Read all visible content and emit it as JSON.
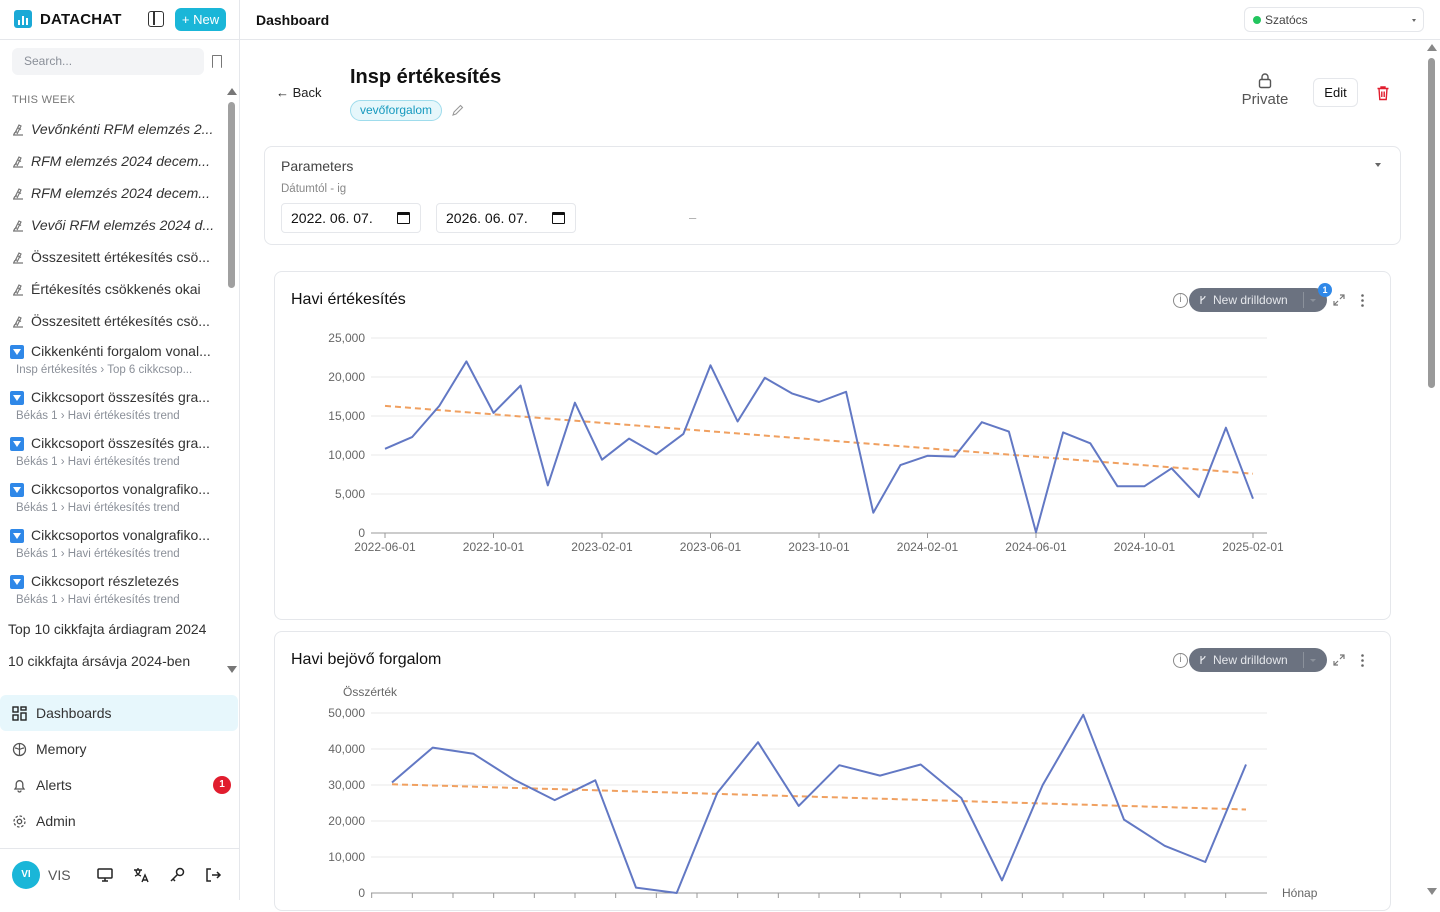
{
  "app": {
    "name": "DATACHAT",
    "new_label": "+ New",
    "search_placeholder": "Search..."
  },
  "sidebar": {
    "section": "THIS WEEK",
    "items": [
      {
        "label": "Vevőnkénti RFM elemzés 2...",
        "kind": "analysis",
        "italic": true
      },
      {
        "label": "RFM elemzés 2024 decem...",
        "kind": "analysis",
        "italic": true
      },
      {
        "label": "RFM elemzés 2024 decem...",
        "kind": "analysis",
        "italic": true
      },
      {
        "label": "Vevői RFM elemzés 2024 d...",
        "kind": "analysis",
        "italic": true
      },
      {
        "label": "Összesitett értékesítés csö...",
        "kind": "analysis",
        "italic": false
      },
      {
        "label": "Értékesítés csökkenés okai",
        "kind": "analysis",
        "italic": false
      },
      {
        "label": "Összesitett értékesítés csö...",
        "kind": "analysis",
        "italic": false
      }
    ],
    "drilldowns": [
      {
        "label": "Cikkenkénti forgalom vonal...",
        "sub": "Insp értékesítés › Top 6 cikkcsop..."
      },
      {
        "label": "Cikkcsoport összesítés gra...",
        "sub": "Békás 1 › Havi értékesítés trend"
      },
      {
        "label": "Cikkcsoport összesítés gra...",
        "sub": "Békás 1 › Havi értékesítés trend"
      },
      {
        "label": "Cikkcsoportos vonalgrafiko...",
        "sub": "Békás 1 › Havi értékesítés trend"
      },
      {
        "label": "Cikkcsoportos vonalgrafiko...",
        "sub": "Békás 1 › Havi értékesítés trend"
      },
      {
        "label": "Cikkcsoport részletezés",
        "sub": "Békás 1 › Havi értékesítés trend"
      }
    ],
    "plain": [
      "Top 10 cikkfajta árdiagram 2024",
      "10 cikkfajta ársávja 2024-ben"
    ],
    "nav": [
      {
        "label": "Dashboards",
        "icon": "dashboard-icon",
        "active": true
      },
      {
        "label": "Memory",
        "icon": "brain-icon",
        "active": false
      },
      {
        "label": "Alerts",
        "icon": "bell-icon",
        "active": false,
        "badge": "1"
      },
      {
        "label": "Admin",
        "icon": "gear-icon",
        "active": false
      }
    ],
    "user": {
      "initials": "VI",
      "name": "VIS"
    }
  },
  "topbar": {
    "breadcrumb": "Dashboard",
    "workspace": "Szatócs"
  },
  "page": {
    "back_label": "Back",
    "title": "Insp értékesítés",
    "tag": "vevőforgalom",
    "private_label": "Private",
    "edit_label": "Edit",
    "parameters": {
      "title": "Parameters",
      "label": "Dátumtól - ig",
      "from": "2022. 06. 07.",
      "to": "2026. 06. 07.",
      "separator": "–"
    }
  },
  "drilldown_label": "New drilldown",
  "drilldown_count": "1",
  "colors": {
    "accent": "#1ab6d8",
    "series": "#6278c4",
    "trend": "#f0a060"
  },
  "chart_data": [
    {
      "type": "line",
      "title": "Havi értékesítés",
      "xlabel": "",
      "ylabel": "",
      "x_tick_labels": [
        "2022-06-01",
        "2022-10-01",
        "2023-02-01",
        "2023-06-01",
        "2023-10-01",
        "2024-02-01",
        "2024-06-01",
        "2024-10-01",
        "2025-02-01"
      ],
      "y_ticks": [
        "0",
        "5,000",
        "10,000",
        "15,000",
        "20,000",
        "25,000"
      ],
      "ylim": [
        0,
        25000
      ],
      "x_count": 33,
      "series": [
        {
          "values": [
            10800,
            12300,
            16300,
            22000,
            15400,
            18900,
            6100,
            16700,
            9400,
            12100,
            10100,
            12700,
            21500,
            14300,
            19900,
            17900,
            16800,
            18100,
            2600,
            8700,
            9900,
            9800,
            14200,
            13000,
            100,
            12900,
            11500,
            6000,
            6000,
            8300,
            4600,
            13500,
            4400
          ]
        }
      ],
      "trend": [
        16300,
        7600
      ],
      "grid": true
    },
    {
      "type": "line",
      "title": "Havi bejövő forgalom",
      "xlabel": "Hónap",
      "ylabel": "Összérték",
      "y_ticks": [
        "0",
        "10,000",
        "20,000",
        "30,000",
        "40,000",
        "50,000"
      ],
      "ylim": [
        0,
        50000
      ],
      "x_count": 22,
      "series": [
        {
          "values": [
            30700,
            40400,
            38700,
            31500,
            25800,
            31300,
            1500,
            0,
            27800,
            41900,
            24200,
            35500,
            32600,
            35700,
            26400,
            3500,
            30000,
            49500,
            20400,
            13100,
            8600,
            35700
          ]
        }
      ],
      "trend": [
        30200,
        23200
      ],
      "grid": true
    }
  ]
}
